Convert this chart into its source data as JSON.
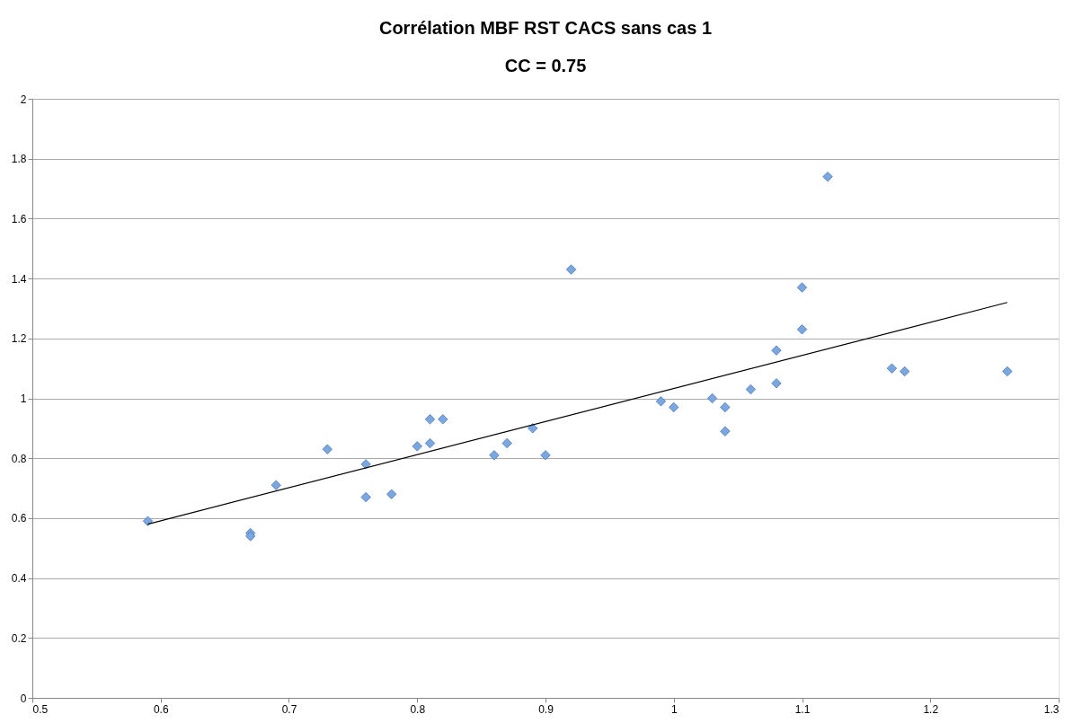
{
  "chart_data": {
    "type": "scatter",
    "title": "Corrélation MBF RST CACS sans cas 1",
    "subtitle": "CC = 0.75",
    "x": [
      0.59,
      0.67,
      0.67,
      0.69,
      0.73,
      0.76,
      0.76,
      0.78,
      0.8,
      0.81,
      0.81,
      0.82,
      0.86,
      0.87,
      0.89,
      0.9,
      0.92,
      0.99,
      1.0,
      1.03,
      1.04,
      1.04,
      1.06,
      1.08,
      1.08,
      1.1,
      1.1,
      1.12,
      1.17,
      1.18,
      1.26
    ],
    "series": [
      {
        "color": "#7ba7e0",
        "marker": "diamond",
        "values": [
          0.59,
          0.55,
          0.54,
          0.71,
          0.83,
          0.78,
          0.67,
          0.68,
          0.84,
          0.93,
          0.85,
          0.93,
          0.81,
          0.85,
          0.9,
          0.81,
          1.43,
          0.99,
          0.97,
          1.0,
          0.97,
          0.89,
          1.03,
          1.16,
          1.05,
          1.37,
          1.23,
          1.74,
          1.1,
          1.09,
          1.09
        ]
      },
      {
        "type": "line",
        "color": "#000000",
        "x": [
          0.59,
          1.26
        ],
        "values": [
          0.58,
          1.32
        ],
        "line_style": "solid"
      }
    ],
    "xlim": [
      0.5,
      1.3
    ],
    "xticks": [
      0.5,
      0.6,
      0.7,
      0.8,
      0.9,
      1,
      1.1,
      1.2,
      1.3
    ],
    "ylim": [
      0,
      2
    ],
    "yticks": [
      0,
      0.2,
      0.4,
      0.6,
      0.8,
      1,
      1.2,
      1.4,
      1.6,
      1.8,
      2
    ],
    "grid": "y"
  }
}
